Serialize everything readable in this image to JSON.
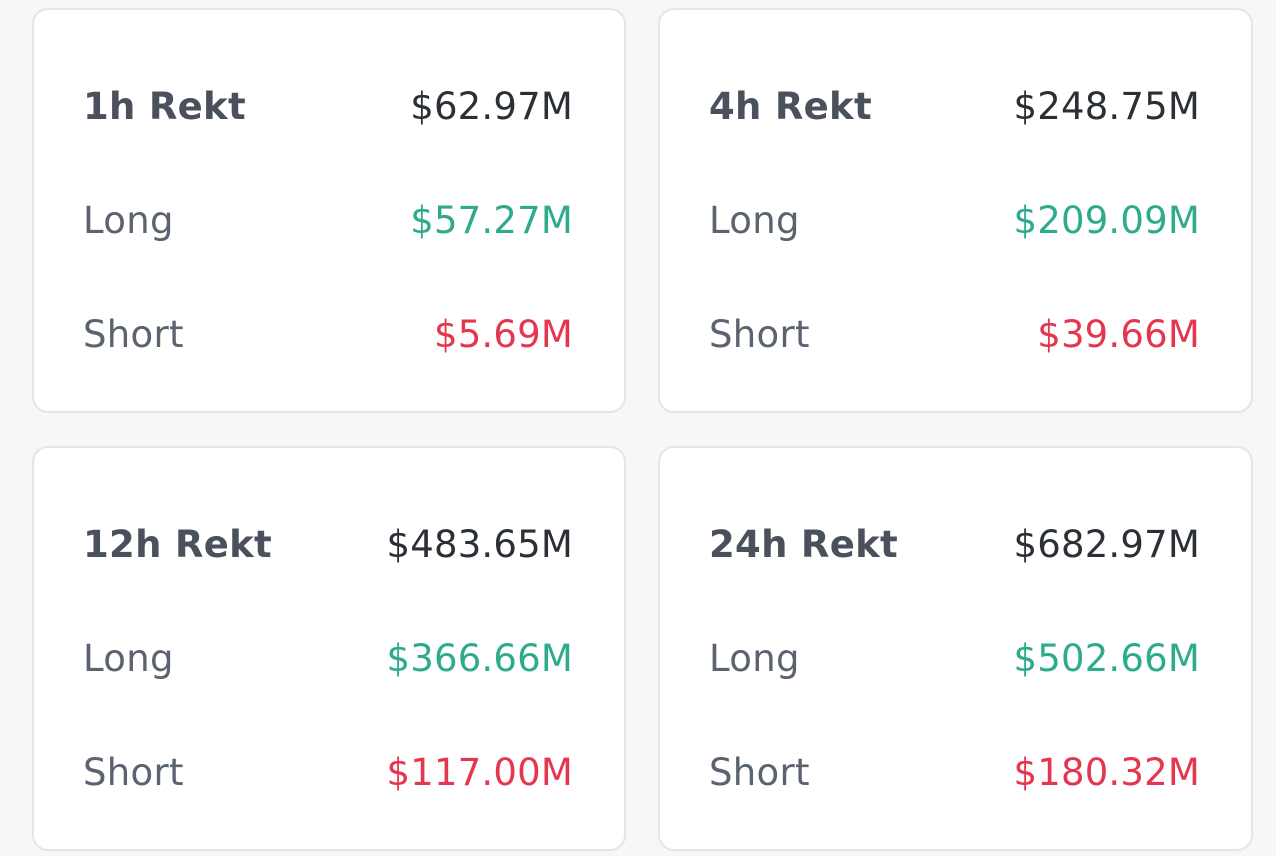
{
  "cards": [
    {
      "title": "1h Rekt",
      "total": "$62.97M",
      "long_label": "Long",
      "long_value": "$57.27M",
      "short_label": "Short",
      "short_value": "$5.69M"
    },
    {
      "title": "4h Rekt",
      "total": "$248.75M",
      "long_label": "Long",
      "long_value": "$209.09M",
      "short_label": "Short",
      "short_value": "$39.66M"
    },
    {
      "title": "12h Rekt",
      "total": "$483.65M",
      "long_label": "Long",
      "long_value": "$366.66M",
      "short_label": "Short",
      "short_value": "$117.00M"
    },
    {
      "title": "24h Rekt",
      "total": "$682.97M",
      "long_label": "Long",
      "long_value": "$502.66M",
      "short_label": "Short",
      "short_value": "$180.32M"
    }
  ],
  "colors": {
    "long": "#2eaa8c",
    "short": "#e5364f",
    "total": "#2b2f36",
    "label": "#5b6270"
  }
}
